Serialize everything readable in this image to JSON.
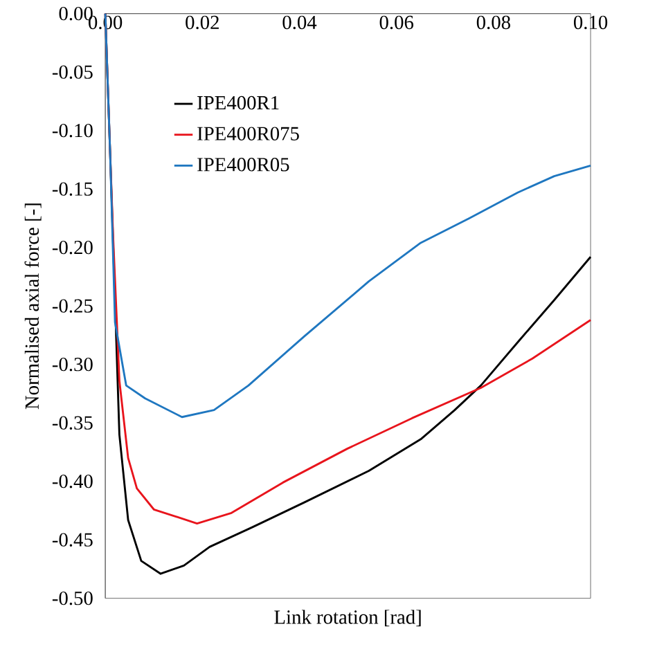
{
  "chart_data": {
    "type": "line",
    "xlabel": "Link rotation [rad]",
    "ylabel": "Normalised axial force [-]",
    "xlim": [
      0,
      0.1
    ],
    "ylim": [
      -0.5,
      0
    ],
    "xticks": [
      {
        "value": 0,
        "label": "0.00"
      },
      0.02,
      0.04,
      0.06,
      0.08,
      {
        "value": 0.1,
        "label": "0.10"
      }
    ],
    "yticks": [
      {
        "value": -0.5,
        "label": "-0.50"
      },
      -0.45,
      {
        "value": -0.4,
        "label": "-0.40"
      },
      -0.35,
      {
        "value": -0.3,
        "label": "-0.30"
      },
      -0.25,
      {
        "value": -0.2,
        "label": "-0.20"
      },
      -0.15,
      {
        "value": -0.1,
        "label": "-0.10"
      },
      -0.05,
      {
        "value": 0,
        "label": "0.00"
      }
    ],
    "grid": false,
    "legend": "top left",
    "marker": "none",
    "line_style": "solid",
    "series": [
      {
        "name": "IPE400R1",
        "color": "#000000",
        "x": [
          0,
          0.001,
          0.0029,
          0.0047,
          0.0074,
          0.0114,
          0.0162,
          0.0215,
          0.0304,
          0.041,
          0.0543,
          0.065,
          0.072,
          0.0774,
          0.0854,
          0.0925,
          0.1
        ],
        "values": [
          0,
          -0.12,
          -0.36,
          -0.433,
          -0.468,
          -0.479,
          -0.472,
          -0.456,
          -0.439,
          -0.418,
          -0.391,
          -0.364,
          -0.339,
          -0.318,
          -0.279,
          -0.245,
          -0.208
        ]
      },
      {
        "name": "IPE400R075",
        "color": "#e8141c",
        "x": [
          0,
          0.001,
          0.0016,
          0.0029,
          0.0047,
          0.0065,
          0.01,
          0.0189,
          0.026,
          0.0366,
          0.0499,
          0.0632,
          0.0774,
          0.088,
          0.1
        ],
        "values": [
          0,
          -0.12,
          -0.19,
          -0.314,
          -0.38,
          -0.406,
          -0.424,
          -0.436,
          -0.427,
          -0.401,
          -0.372,
          -0.346,
          -0.32,
          -0.295,
          -0.262
        ]
      },
      {
        "name": "IPE400R05",
        "color": "#1f77c0",
        "x": [
          0,
          0.001,
          0.002,
          0.0043,
          0.0082,
          0.0158,
          0.0224,
          0.0295,
          0.041,
          0.0543,
          0.065,
          0.075,
          0.085,
          0.0925,
          0.1
        ],
        "values": [
          0,
          -0.12,
          -0.264,
          -0.318,
          -0.329,
          -0.345,
          -0.339,
          -0.318,
          -0.276,
          -0.229,
          -0.196,
          -0.175,
          -0.153,
          -0.139,
          -0.13
        ]
      }
    ]
  }
}
